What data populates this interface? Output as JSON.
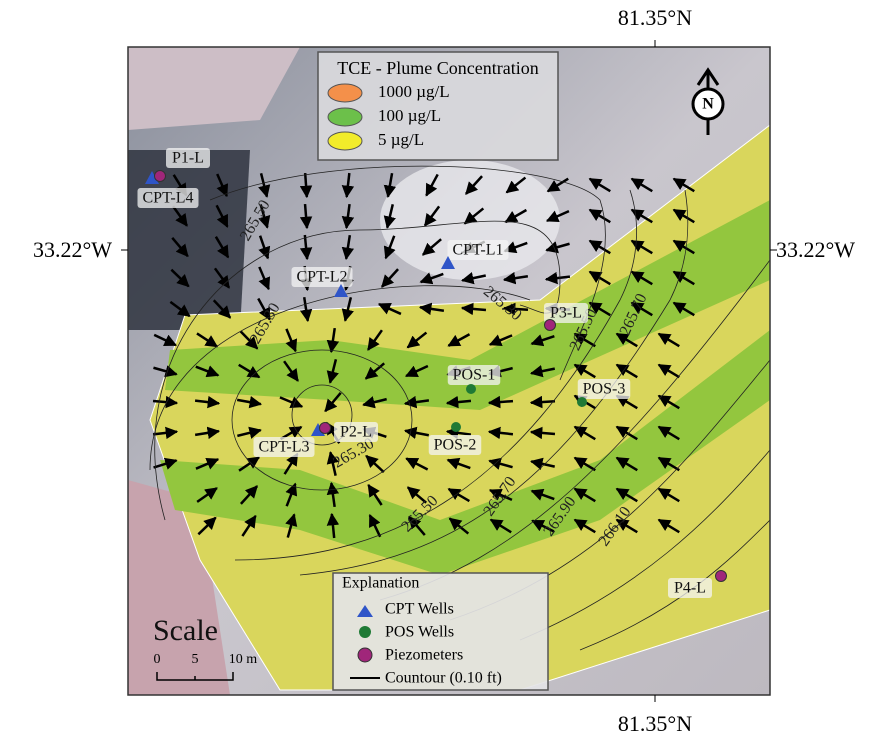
{
  "coordinates": {
    "top": "81.35°N",
    "bottom": "81.35°N",
    "left": "33.22°W",
    "right": "33.22°W"
  },
  "plume_legend": {
    "title": "TCE - Plume Concentration",
    "items": [
      "1000 µg/L",
      "100 µg/L",
      "5 µg/L"
    ]
  },
  "north_arrow": "N",
  "wells": {
    "cpt_wells": [
      "CPT-L4",
      "CPT-L1",
      "CPT-L2",
      "CPT-L3"
    ],
    "pos_wells": [
      "POS-1",
      "POS-3",
      "POS-2"
    ],
    "piezometers": [
      "P1-L",
      "P3-L",
      "P2-L",
      "P4-L"
    ]
  },
  "contour_labels": [
    "265.50",
    "265.30",
    "265.30",
    "265.50",
    "265.70",
    "265.30",
    "265.50",
    "265.70",
    "265.90",
    "266.10"
  ],
  "explanation": {
    "title": "Explanation",
    "items": [
      "CPT Wells",
      "POS Wells",
      "Piezometers",
      "Countour (0.10 ft)"
    ]
  },
  "scale": {
    "title": "Scale",
    "ticks": [
      "0",
      "5",
      "10 m"
    ]
  }
}
